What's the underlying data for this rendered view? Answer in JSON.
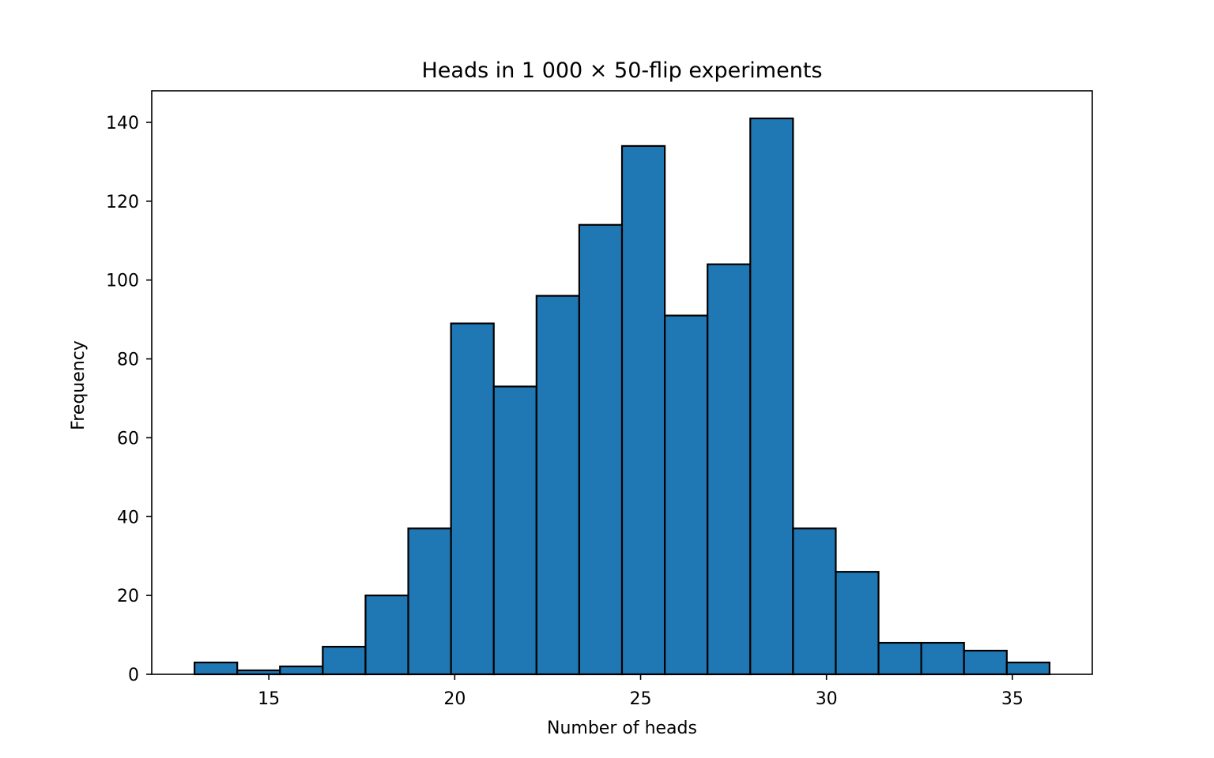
{
  "chart_data": {
    "type": "bar",
    "title": "Heads in 1 000 × 50-flip experiments",
    "xlabel": "Number of heads",
    "ylabel": "Frequency",
    "bin_edges": [
      13.0,
      14.15,
      15.3,
      16.45,
      17.6,
      18.75,
      19.9,
      21.05,
      22.2,
      23.35,
      24.5,
      25.65,
      26.8,
      27.95,
      29.1,
      30.25,
      31.4,
      32.55,
      33.7,
      34.85,
      36.0
    ],
    "values": [
      3,
      1,
      2,
      7,
      20,
      37,
      89,
      73,
      96,
      114,
      134,
      91,
      104,
      141,
      37,
      26,
      8,
      8,
      6,
      3
    ],
    "xlim": [
      11.85,
      37.15
    ],
    "ylim": [
      0,
      148
    ],
    "xticks": [
      15,
      20,
      25,
      30,
      35
    ],
    "yticks": [
      0,
      20,
      40,
      60,
      80,
      100,
      120,
      140
    ],
    "bar_color": "#1f77b4",
    "edge_color": "#000000",
    "grid": false
  }
}
